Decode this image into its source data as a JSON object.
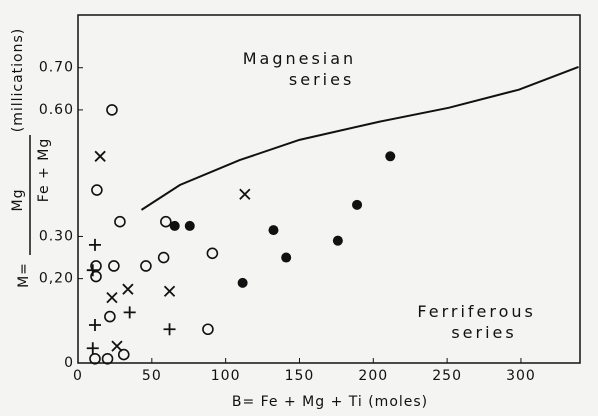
{
  "chart_data": {
    "type": "scatter",
    "x_label": "B= Fe + Mg + Ti (moles)",
    "y_label": {
      "prefix": "M=",
      "numerator": "Mg",
      "denominator": "Fe + Mg",
      "unit": "(millications)"
    },
    "annotations": [
      {
        "text": "Magnesian",
        "x": 150,
        "y": 0.72
      },
      {
        "text": "series",
        "x": 165,
        "y": 0.67
      },
      {
        "text": "Ferriferous",
        "x": 270,
        "y": 0.12
      },
      {
        "text": "series",
        "x": 275,
        "y": 0.07
      }
    ],
    "xlim": [
      0,
      340
    ],
    "ylim": [
      0,
      0.825
    ],
    "xticks": [
      0,
      50,
      100,
      150,
      200,
      250,
      300
    ],
    "yticks": [
      0,
      {
        "value": 0.2,
        "label": "0,20"
      },
      {
        "value": 0.3,
        "label": "0.30"
      },
      {
        "value": 0.6,
        "label": "0.60"
      },
      {
        "value": 0.7,
        "label": "0.70"
      }
    ],
    "color": "#111111",
    "series": [
      {
        "marker": "circle-open",
        "x": [
          23,
          12.8,
          28.4,
          12.2,
          12.2,
          24.3,
          46,
          58,
          59.5,
          91,
          21.6,
          88,
          11.5,
          20,
          31
        ],
        "values": [
          0.6,
          0.41,
          0.335,
          0.23,
          0.205,
          0.23,
          0.23,
          0.25,
          0.335,
          0.26,
          0.11,
          0.08,
          0.01,
          0.01,
          0.02
        ]
      },
      {
        "marker": "circle-filled",
        "x": [
          65.5,
          75.7,
          111.5,
          132.4,
          141,
          176,
          189,
          211.5
        ],
        "values": [
          0.325,
          0.325,
          0.19,
          0.315,
          0.25,
          0.29,
          0.375,
          0.49
        ]
      },
      {
        "marker": "cross",
        "x": [
          15,
          113,
          23,
          33.8,
          62,
          26.4
        ],
        "values": [
          0.49,
          0.4,
          0.155,
          0.175,
          0.17,
          0.04
        ]
      },
      {
        "marker": "plus",
        "x": [
          11.5,
          10,
          11.5,
          35,
          62,
          10
        ],
        "values": [
          0.28,
          0.22,
          0.09,
          0.12,
          0.08,
          0.035
        ]
      }
    ],
    "boundary": {
      "x": [
        43,
        69,
        109.5,
        150,
        204,
        251,
        298.6,
        339
      ],
      "values": [
        0.363,
        0.422,
        0.481,
        0.529,
        0.572,
        0.605,
        0.648,
        0.702
      ]
    }
  }
}
